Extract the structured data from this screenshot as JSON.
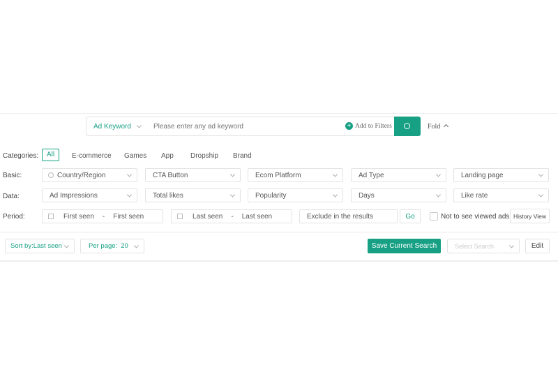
{
  "search": {
    "type": "Ad Keyword",
    "placeholder": "Please enter any ad keyword",
    "add_filters": "Add to Filters",
    "fold": "Fold"
  },
  "categories": {
    "label": "Categories:",
    "items": [
      "All",
      "E-commerce",
      "Games",
      "App",
      "Dropship",
      "Brand"
    ]
  },
  "basic": {
    "label": "Basic:",
    "items": [
      "Country/Region",
      "CTA Button",
      "Ecom Platform",
      "Ad Type",
      "Landing page"
    ]
  },
  "data_row": {
    "label": "Data:",
    "items": [
      "Ad Impressions",
      "Total likes",
      "Popularity",
      "Days",
      "Like rate"
    ]
  },
  "period": {
    "label": "Period:",
    "first_start": "First seen",
    "first_end": "First seen",
    "last_start": "Last seen",
    "last_end": "Last seen",
    "sep": "-",
    "exclude_placeholder": "Exclude in the results",
    "go": "Go",
    "not_viewed": "Not to see viewed ads",
    "history": "History View"
  },
  "toolbar": {
    "sort": "Sort by:Last seen",
    "per_page_label": "Per page:",
    "per_page": "20",
    "save": "Save Current Search",
    "select_placeholder": "Select Search",
    "edit": "Edit"
  },
  "colors": {
    "accent": "#17a084"
  }
}
